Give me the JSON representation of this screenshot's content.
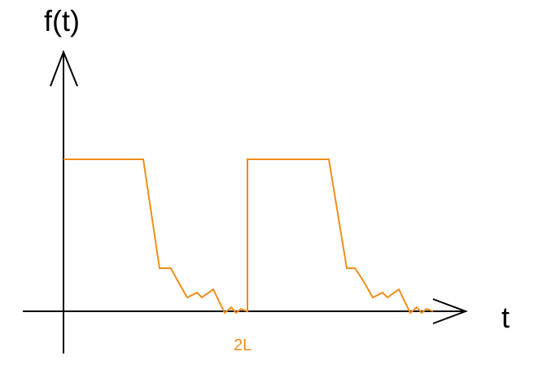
{
  "diagram": {
    "y_axis_label": "f(t)",
    "x_axis_label": "t",
    "marker_label": "2L",
    "colors": {
      "axis": "#000000",
      "signal": "#ef8e1a",
      "background": "#ffffff"
    }
  }
}
